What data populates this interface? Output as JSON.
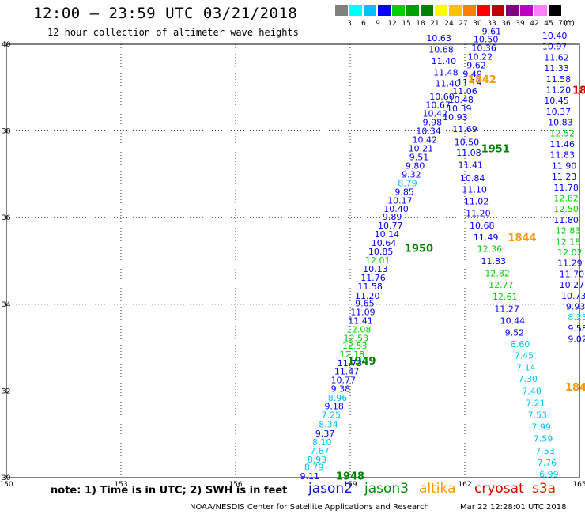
{
  "title": "12:00 — 23:59 UTC 03/21/2018",
  "subtitle": "12 hour collection of altimeter wave heights",
  "scale": {
    "unit": "(ft)",
    "colors": [
      "#808080",
      "#00ffff",
      "#00c0ff",
      "#0000ff",
      "#00d000",
      "#00a000",
      "#008000",
      "#ffff00",
      "#ffc000",
      "#ff8000",
      "#ff0000",
      "#c00000",
      "#800080",
      "#c000c0",
      "#ff80ff",
      "#000000"
    ],
    "labels": [
      "3",
      "6",
      "9",
      "12",
      "15",
      "18",
      "21",
      "24",
      "27",
      "30",
      "33",
      "36",
      "39",
      "42",
      "45",
      "70"
    ]
  },
  "note": "note:  1) Time is in UTC;  2) SWH is in feet",
  "satellites": [
    {
      "name": "jason2",
      "color": "#1010d0"
    },
    {
      "name": "jason3",
      "color": "#009000"
    },
    {
      "name": "altika",
      "color": "#ff9900"
    },
    {
      "name": "cryosat",
      "color": "#e00000"
    },
    {
      "name": "s3a",
      "color": "#cc3300"
    }
  ],
  "footer": "NOAA/NESDIS Center for Satellite Applications and Research",
  "footer_time": "Mar 22 12:28:01 UTC 2018",
  "chart_data": {
    "type": "scatter",
    "xlim": [
      150,
      165
    ],
    "ylim": [
      30,
      40
    ],
    "x_ticks": [
      "150",
      "153",
      "156",
      "159",
      "162",
      "165"
    ],
    "y_ticks": [
      "30",
      "32",
      "34",
      "36",
      "38",
      "40"
    ],
    "grid": true,
    "time_labels": [
      {
        "text": "1948",
        "x": 159.0,
        "y": 30.05,
        "color": "#008000"
      },
      {
        "text": "1949",
        "x": 159.3,
        "y": 32.7,
        "color": "#008000"
      },
      {
        "text": "1950",
        "x": 160.8,
        "y": 35.3,
        "color": "#008000"
      },
      {
        "text": "1951",
        "x": 162.8,
        "y": 37.6,
        "color": "#008000"
      },
      {
        "text": "1844",
        "x": 163.5,
        "y": 35.55,
        "color": "#ff9900"
      },
      {
        "text": "1843",
        "x": 165.0,
        "y": 32.1,
        "color": "#ff9900"
      },
      {
        "text": "1842",
        "x": 162.45,
        "y": 39.2,
        "color": "#ff9900"
      },
      {
        "text": "18",
        "x": 165.0,
        "y": 38.95,
        "color": "#e00000"
      }
    ],
    "points": [
      [
        "9.11",
        157.94,
        30.04,
        "#0000ff"
      ],
      [
        "8.79",
        158.05,
        30.25,
        "#00c0ff"
      ],
      [
        "8.93",
        158.13,
        30.42,
        "#00c0ff"
      ],
      [
        "7.67",
        158.2,
        30.62,
        "#00c0ff"
      ],
      [
        "8.10",
        158.26,
        30.82,
        "#00c0ff"
      ],
      [
        "9.37",
        158.34,
        31.02,
        "#0000ff"
      ],
      [
        "8.34",
        158.43,
        31.23,
        "#00c0ff"
      ],
      [
        "7.25",
        158.5,
        31.45,
        "#00c0ff"
      ],
      [
        "9.18",
        158.58,
        31.65,
        "#0000ff"
      ],
      [
        "8.96",
        158.67,
        31.84,
        "#00c0ff"
      ],
      [
        "9.38",
        158.75,
        32.05,
        "#0000ff"
      ],
      [
        "10.77",
        158.82,
        32.25,
        "#0000ff"
      ],
      [
        "11.47",
        158.91,
        32.45,
        "#0000ff"
      ],
      [
        "11.73",
        158.99,
        32.65,
        "#0000ff"
      ],
      [
        "12.18",
        159.05,
        32.85,
        "#00d000"
      ],
      [
        "12.53",
        159.12,
        33.05,
        "#00d000"
      ],
      [
        "12.53",
        159.15,
        33.22,
        "#00d000"
      ],
      [
        "12.08",
        159.22,
        33.42,
        "#00d000"
      ],
      [
        "11.41",
        159.27,
        33.62,
        "#0000ff"
      ],
      [
        "11.09",
        159.33,
        33.82,
        "#0000ff"
      ],
      [
        "9.65",
        159.38,
        34.02,
        "#0000ff"
      ],
      [
        "11.20",
        159.45,
        34.2,
        "#0000ff"
      ],
      [
        "11.58",
        159.52,
        34.42,
        "#0000ff"
      ],
      [
        "11.76",
        159.6,
        34.62,
        "#0000ff"
      ],
      [
        "10.13",
        159.66,
        34.82,
        "#0000ff"
      ],
      [
        "12.01",
        159.72,
        35.02,
        "#00d000"
      ],
      [
        "10.85",
        159.8,
        35.22,
        "#0000ff"
      ],
      [
        "10.64",
        159.88,
        35.42,
        "#0000ff"
      ],
      [
        "10.14",
        159.96,
        35.62,
        "#0000ff"
      ],
      [
        "10.77",
        160.05,
        35.82,
        "#0000ff"
      ],
      [
        "9.89",
        160.1,
        36.02,
        "#0000ff"
      ],
      [
        "10.40",
        160.2,
        36.2,
        "#0000ff"
      ],
      [
        "10.17",
        160.3,
        36.4,
        "#0000ff"
      ],
      [
        "9.85",
        160.42,
        36.6,
        "#0000ff"
      ],
      [
        "8.79",
        160.5,
        36.8,
        "#00c0ff"
      ],
      [
        "9.32",
        160.6,
        37.0,
        "#0000ff"
      ],
      [
        "9.80",
        160.7,
        37.2,
        "#0000ff"
      ],
      [
        "9.51",
        160.8,
        37.4,
        "#0000ff"
      ],
      [
        "10.21",
        160.85,
        37.6,
        "#0000ff"
      ],
      [
        "10.42",
        160.95,
        37.8,
        "#0000ff"
      ],
      [
        "10.34",
        161.05,
        38.0,
        "#0000ff"
      ],
      [
        "9.98",
        161.15,
        38.2,
        "#0000ff"
      ],
      [
        "10.42",
        161.22,
        38.4,
        "#0000ff"
      ],
      [
        "10.67",
        161.3,
        38.6,
        "#0000ff"
      ],
      [
        "10.60",
        161.4,
        38.8,
        "#0000ff"
      ],
      [
        "11.40",
        161.55,
        39.1,
        "#0000ff"
      ],
      [
        "11.48",
        161.5,
        39.35,
        "#0000ff"
      ],
      [
        "11.40",
        161.45,
        39.62,
        "#0000ff"
      ],
      [
        "10.68",
        161.38,
        39.88,
        "#0000ff"
      ],
      [
        "10.63",
        161.32,
        40.15,
        "#0000ff"
      ],
      [
        "9.61",
        162.7,
        40.3,
        "#0000ff"
      ],
      [
        "10.50",
        162.55,
        40.12,
        "#0000ff"
      ],
      [
        "10.36",
        162.5,
        39.92,
        "#0000ff"
      ],
      [
        "10.22",
        162.4,
        39.72,
        "#0000ff"
      ],
      [
        "9.62",
        162.3,
        39.52,
        "#0000ff"
      ],
      [
        "9.49",
        162.2,
        39.32,
        "#0000ff"
      ],
      [
        "11.14",
        162.12,
        39.12,
        "#0000ff"
      ],
      [
        "11.06",
        162.0,
        38.92,
        "#0000ff"
      ],
      [
        "10.48",
        161.9,
        38.72,
        "#0000ff"
      ],
      [
        "10.39",
        161.85,
        38.52,
        "#0000ff"
      ],
      [
        "10.93",
        161.75,
        38.32,
        "#0000ff"
      ],
      [
        "11.69",
        162.0,
        38.05,
        "#0000ff"
      ],
      [
        "10.50",
        162.05,
        37.75,
        "#0000ff"
      ],
      [
        "11.08",
        162.1,
        37.5,
        "#0000ff"
      ],
      [
        "11.41",
        162.15,
        37.22,
        "#0000ff"
      ],
      [
        "10.84",
        162.2,
        36.92,
        "#0000ff"
      ],
      [
        "11.10",
        162.25,
        36.65,
        "#0000ff"
      ],
      [
        "11.02",
        162.3,
        36.38,
        "#0000ff"
      ],
      [
        "11.20",
        162.35,
        36.1,
        "#0000ff"
      ],
      [
        "10.68",
        162.45,
        35.82,
        "#0000ff"
      ],
      [
        "11.49",
        162.55,
        35.55,
        "#0000ff"
      ],
      [
        "12.36",
        162.65,
        35.28,
        "#00d000"
      ],
      [
        "11.83",
        162.75,
        35.0,
        "#0000ff"
      ],
      [
        "12.82",
        162.85,
        34.72,
        "#00d000"
      ],
      [
        "12.77",
        162.95,
        34.45,
        "#00d000"
      ],
      [
        "12.61",
        163.05,
        34.18,
        "#00d000"
      ],
      [
        "11.27",
        163.1,
        33.9,
        "#0000ff"
      ],
      [
        "10.44",
        163.25,
        33.62,
        "#0000ff"
      ],
      [
        "9.52",
        163.3,
        33.35,
        "#0000ff"
      ],
      [
        "8.60",
        163.45,
        33.08,
        "#00c0ff"
      ],
      [
        "7.45",
        163.55,
        32.82,
        "#00c0ff"
      ],
      [
        "7.14",
        163.6,
        32.55,
        "#00c0ff"
      ],
      [
        "7.30",
        163.65,
        32.28,
        "#00c0ff"
      ],
      [
        "7.40",
        163.75,
        32.0,
        "#00c0ff"
      ],
      [
        "7.21",
        163.85,
        31.72,
        "#00c0ff"
      ],
      [
        "7.53",
        163.9,
        31.45,
        "#00c0ff"
      ],
      [
        "7.99",
        164.0,
        31.18,
        "#00c0ff"
      ],
      [
        "7.59",
        164.05,
        30.9,
        "#00c0ff"
      ],
      [
        "7.53",
        164.1,
        30.62,
        "#00c0ff"
      ],
      [
        "7.76",
        164.15,
        30.35,
        "#00c0ff"
      ],
      [
        "6.99",
        164.2,
        30.08,
        "#00c0ff"
      ],
      [
        "6.73",
        164.25,
        29.8,
        "#00c0ff"
      ],
      [
        "7.84",
        164.3,
        29.55,
        "#00c0ff"
      ],
      [
        "7.50",
        164.3,
        29.3,
        "#00c0ff"
      ],
      [
        "10.40",
        164.35,
        40.2,
        "#0000ff"
      ],
      [
        "10.97",
        164.35,
        39.95,
        "#0000ff"
      ],
      [
        "11.62",
        164.4,
        39.7,
        "#0000ff"
      ],
      [
        "11.33",
        164.4,
        39.45,
        "#0000ff"
      ],
      [
        "11.58",
        164.45,
        39.2,
        "#0000ff"
      ],
      [
        "11.20",
        164.45,
        38.95,
        "#0000ff"
      ],
      [
        "10.45",
        164.4,
        38.7,
        "#0000ff"
      ],
      [
        "10.37",
        164.45,
        38.45,
        "#0000ff"
      ],
      [
        "10.83",
        164.5,
        38.2,
        "#0000ff"
      ],
      [
        "12.52",
        164.55,
        37.95,
        "#00d000"
      ],
      [
        "11.46",
        164.55,
        37.7,
        "#0000ff"
      ],
      [
        "11.83",
        164.55,
        37.45,
        "#0000ff"
      ],
      [
        "11.90",
        164.6,
        37.2,
        "#0000ff"
      ],
      [
        "11.23",
        164.6,
        36.95,
        "#0000ff"
      ],
      [
        "11.78",
        164.65,
        36.7,
        "#0000ff"
      ],
      [
        "12.82",
        164.65,
        36.45,
        "#00d000"
      ],
      [
        "12.50",
        164.65,
        36.2,
        "#00d000"
      ],
      [
        "11.80",
        164.65,
        35.95,
        "#0000ff"
      ],
      [
        "12.83",
        164.7,
        35.7,
        "#00d000"
      ],
      [
        "12.18",
        164.7,
        35.45,
        "#00d000"
      ],
      [
        "12.02",
        164.75,
        35.2,
        "#00d000"
      ],
      [
        "11.29",
        164.75,
        34.95,
        "#0000ff"
      ],
      [
        "11.70",
        164.8,
        34.7,
        "#0000ff"
      ],
      [
        "10.27",
        164.8,
        34.45,
        "#0000ff"
      ],
      [
        "10.73",
        164.85,
        34.2,
        "#0000ff"
      ],
      [
        "9.93",
        164.9,
        33.95,
        "#0000ff"
      ],
      [
        "8.23",
        164.95,
        33.7,
        "#00c0ff"
      ],
      [
        "9.58",
        164.95,
        33.45,
        "#0000ff"
      ],
      [
        "9.02",
        164.95,
        33.2,
        "#0000ff"
      ]
    ]
  }
}
